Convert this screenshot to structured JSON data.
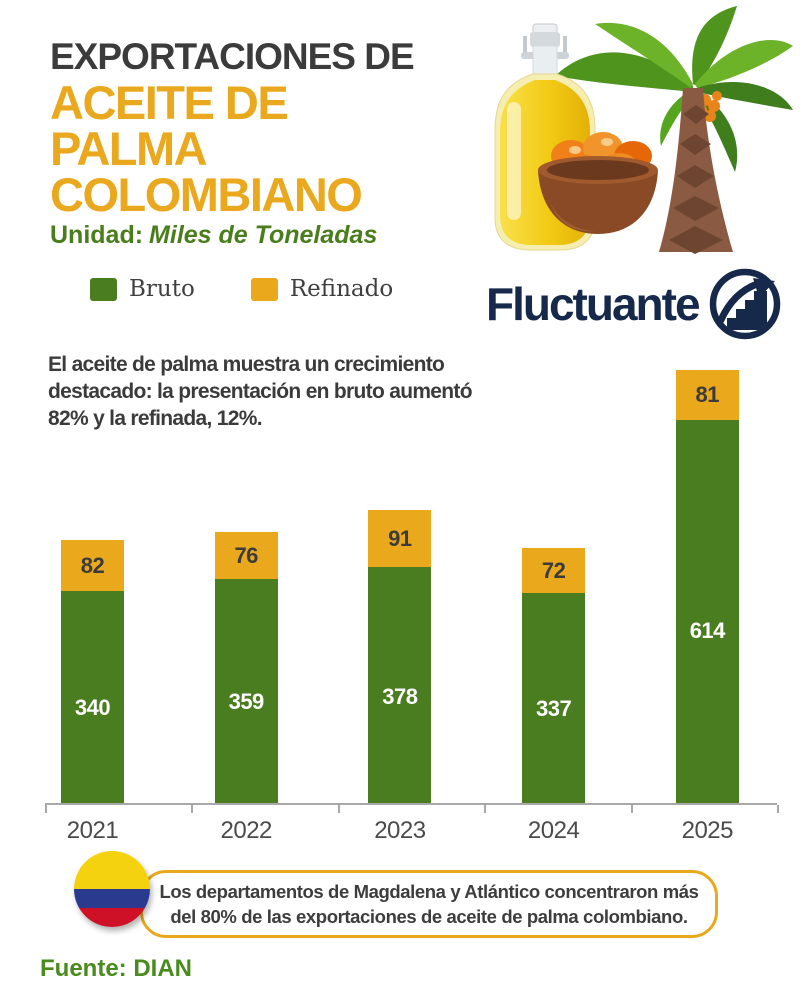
{
  "header": {
    "title_prefix": "EXPORTACIONES DE",
    "title_accent": [
      "ACEITE DE",
      "PALMA",
      "COLOMBIANO"
    ],
    "unit_label": "Unidad:",
    "unit_value": "Miles de Toneladas"
  },
  "brand": {
    "name": "Fluctuante"
  },
  "intro_text": "El aceite de palma muestra un crecimiento destacado: la presentación en bruto aumentó 82% y la refinada, 12%.",
  "chart_data": {
    "type": "bar",
    "stacked": true,
    "title": "Exportaciones de aceite de palma colombiano",
    "unit": "Miles de Toneladas",
    "categories": [
      "2021",
      "2022",
      "2023",
      "2024",
      "2025"
    ],
    "series": [
      {
        "name": "Bruto",
        "color": "#4a7d1f",
        "values": [
          340,
          359,
          378,
          337,
          614
        ]
      },
      {
        "name": "Refinado",
        "color": "#eaa91c",
        "values": [
          82,
          76,
          91,
          72,
          81
        ]
      }
    ],
    "xlabel": "",
    "ylabel": "Miles de Toneladas",
    "ylim": [
      0,
      700
    ],
    "grid": false,
    "legend_position": "top-left",
    "value_labels": true
  },
  "callout": {
    "text": "Los departamentos de Magdalena y Atlántico concentraron más del 80% de las exportaciones de aceite de palma colombiano."
  },
  "source": {
    "label": "Fuente:",
    "value": "DIAN"
  },
  "colors": {
    "accent_gold": "#e9a81d",
    "bruto_green": "#4a7d1f",
    "refinado_yellow": "#eaa91c",
    "brand_navy": "#16294a",
    "unit_green": "#4a7d1c",
    "text_dark": "#3b3b3b",
    "source_green": "#4a8b1e",
    "flag_yellow": "#f5d20f",
    "flag_blue": "#2a3b8f",
    "flag_red": "#ce1126",
    "callout_border": "#e9a81d"
  }
}
